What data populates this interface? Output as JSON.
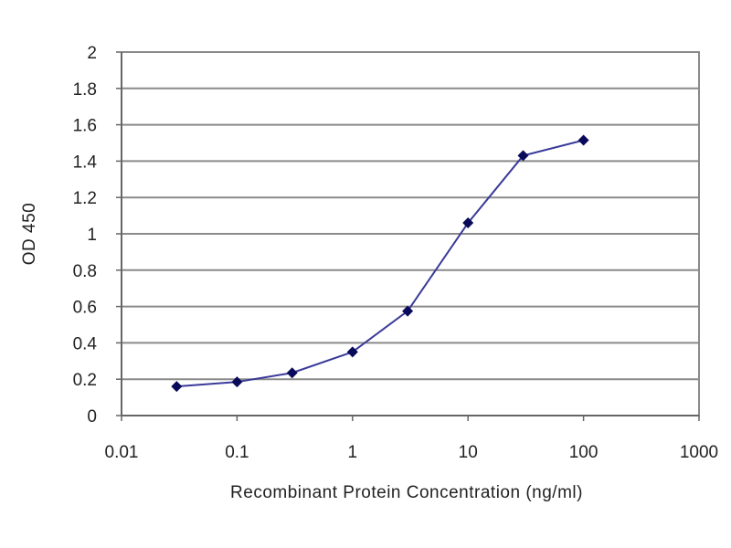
{
  "chart_data": {
    "type": "line",
    "title": "",
    "xlabel": "Recombinant Protein Concentration (ng/ml)",
    "ylabel": "OD 450",
    "xscale": "log",
    "xlim": [
      0.01,
      1000
    ],
    "ylim": [
      0,
      2
    ],
    "xticks": [
      "0.01",
      "0.1",
      "1",
      "10",
      "100",
      "1000"
    ],
    "yticks": [
      "0",
      "0.2",
      "0.4",
      "0.6",
      "0.8",
      "1",
      "1.2",
      "1.4",
      "1.6",
      "1.8",
      "2"
    ],
    "grid": "horizontal",
    "legend": "none",
    "line_color": "#3a3a9a",
    "marker_color": "#0a0a5a",
    "series": [
      {
        "x": [
          0.03,
          0.1,
          0.3,
          1,
          3,
          10,
          30,
          100
        ],
        "y": [
          0.16,
          0.185,
          0.235,
          0.35,
          0.575,
          1.06,
          1.43,
          1.515
        ]
      }
    ]
  }
}
